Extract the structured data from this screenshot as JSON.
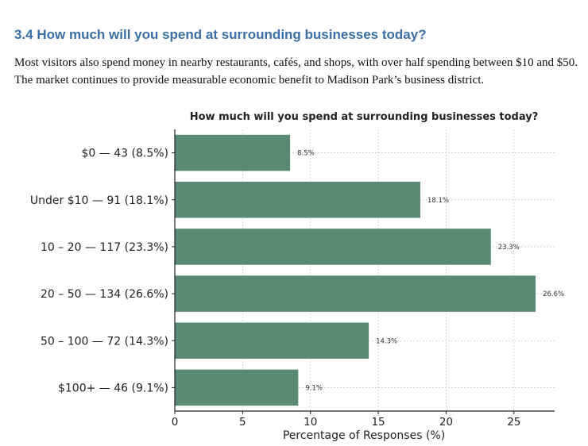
{
  "section": {
    "heading": "3.4 How much will you spend at surrounding businesses today?",
    "paragraph": "Most visitors also spend money in nearby restaurants, cafés, and shops, with over half spending between $10 and $50. The market continues to provide measurable economic benefit to Madison Park’s business district."
  },
  "colors": {
    "bar": "#5a8a73",
    "heading": "#3a6ea5",
    "grid": "#cccccc"
  },
  "chart_data": {
    "type": "bar",
    "orientation": "horizontal",
    "title": "How much will you spend at surrounding businesses today?",
    "xlabel": "Percentage of Responses (%)",
    "ylabel": "",
    "xlim": [
      0,
      28
    ],
    "xticks": [
      0,
      5,
      10,
      15,
      20,
      25
    ],
    "grid": true,
    "categories": [
      "$0 — 43 (8.5%)",
      "Under $10 — 91 (18.1%)",
      "10 – 20 — 117 (23.3%)",
      "20 – 50 — 134 (26.6%)",
      "50 – 100 — 72 (14.3%)",
      "$100+ — 46 (9.1%)"
    ],
    "values": [
      8.5,
      18.1,
      23.3,
      26.6,
      14.3,
      9.1
    ],
    "value_labels": [
      "8.5%",
      "18.1%",
      "23.3%",
      "26.6%",
      "14.3%",
      "9.1%"
    ]
  }
}
